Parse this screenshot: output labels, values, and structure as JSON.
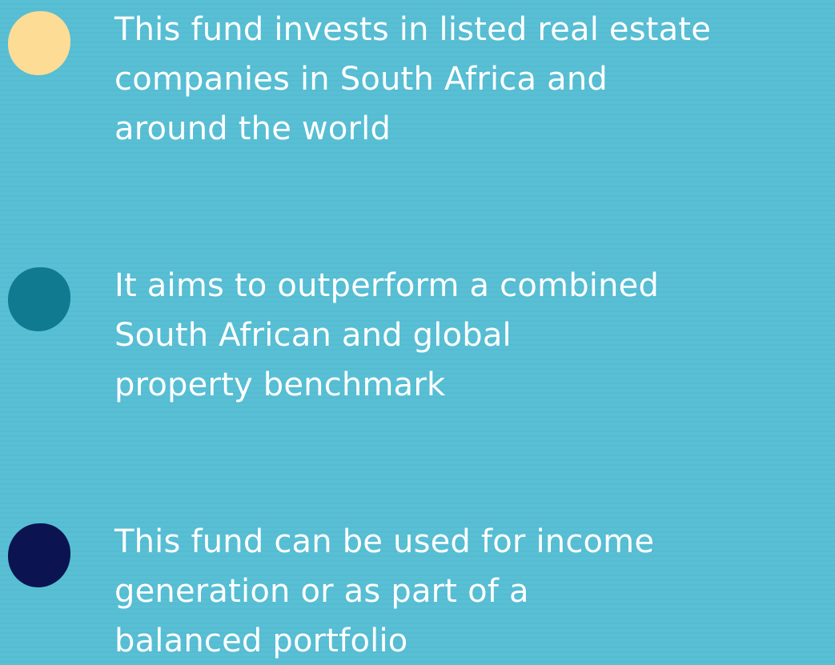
{
  "items": [
    {
      "color": "#fddc95",
      "lines": [
        "This fund invests in listed real estate",
        "companies in South Africa and",
        "around the world"
      ]
    },
    {
      "color": "#107a90",
      "lines": [
        "It aims to outperform a combined",
        "South African and global",
        "property benchmark"
      ]
    },
    {
      "color": "#0b1450",
      "lines": [
        "This fund can be used for income",
        "generation or as part of a",
        "balanced portfolio"
      ]
    }
  ]
}
